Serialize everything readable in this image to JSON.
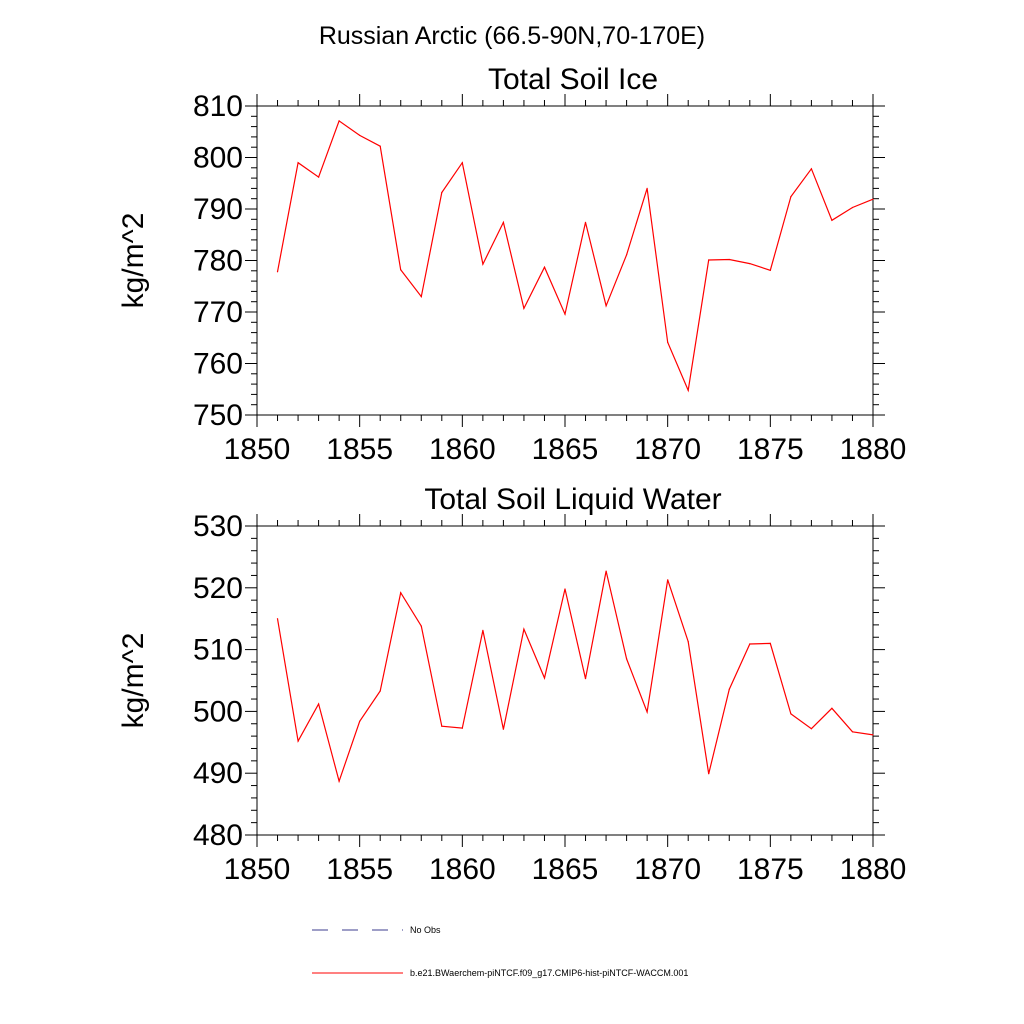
{
  "figure": {
    "suptitle": "Russian Arctic (66.5-90N,70-170E)"
  },
  "chart_data": [
    {
      "type": "line",
      "title": "Total Soil Ice",
      "xlabel": "",
      "ylabel": "kg/m^2",
      "xlim": [
        1850,
        1880
      ],
      "ylim": [
        750,
        810
      ],
      "xticks": [
        1850,
        1855,
        1860,
        1865,
        1870,
        1875,
        1880
      ],
      "yticks": [
        750,
        760,
        770,
        780,
        790,
        800,
        810
      ],
      "grid": false,
      "series": [
        {
          "name": "b.e21.BWaerchem-piNTCF.f09_g17.CMIP6-hist-piNTCF-WACCM.001",
          "color": "#ff0000",
          "x": [
            1851,
            1852,
            1853,
            1854,
            1855,
            1856,
            1857,
            1858,
            1859,
            1860,
            1861,
            1862,
            1863,
            1864,
            1865,
            1866,
            1867,
            1868,
            1869,
            1870,
            1871,
            1872,
            1873,
            1874,
            1875,
            1876,
            1877,
            1878,
            1879,
            1880
          ],
          "y": [
            777.8,
            799.0,
            796.2,
            807.1,
            804.3,
            802.2,
            778.2,
            773.0,
            793.2,
            799.0,
            779.3,
            787.4,
            770.7,
            778.7,
            769.6,
            787.4,
            771.2,
            781.1,
            794.0,
            764.1,
            754.8,
            780.1,
            780.2,
            779.4,
            778.1,
            792.4,
            797.8,
            787.8,
            790.3,
            791.9
          ]
        }
      ]
    },
    {
      "type": "line",
      "title": "Total Soil Liquid Water",
      "xlabel": "",
      "ylabel": "kg/m^2",
      "xlim": [
        1850,
        1880
      ],
      "ylim": [
        480,
        530
      ],
      "xticks": [
        1850,
        1855,
        1860,
        1865,
        1870,
        1875,
        1880
      ],
      "yticks": [
        480,
        490,
        500,
        510,
        520,
        530
      ],
      "grid": false,
      "series": [
        {
          "name": "b.e21.BWaerchem-piNTCF.f09_g17.CMIP6-hist-piNTCF-WACCM.001",
          "color": "#ff0000",
          "x": [
            1851,
            1852,
            1853,
            1854,
            1855,
            1856,
            1857,
            1858,
            1859,
            1860,
            1861,
            1862,
            1863,
            1864,
            1865,
            1866,
            1867,
            1868,
            1869,
            1870,
            1871,
            1872,
            1873,
            1874,
            1875,
            1876,
            1877,
            1878,
            1879,
            1880
          ],
          "y": [
            515.0,
            495.2,
            501.2,
            488.7,
            498.4,
            503.3,
            519.2,
            513.8,
            497.6,
            497.3,
            513.1,
            497.1,
            513.3,
            505.4,
            519.8,
            505.3,
            522.7,
            508.5,
            499.9,
            521.3,
            511.3,
            489.9,
            503.6,
            510.9,
            511.0,
            499.6,
            497.2,
            500.5,
            496.7,
            496.2
          ]
        }
      ]
    }
  ],
  "legend": {
    "items": [
      {
        "label": "No Obs",
        "style": "dashed",
        "color": "#3d3d8f"
      },
      {
        "label": "b.e21.BWaerchem-piNTCF.f09_g17.CMIP6-hist-piNTCF-WACCM.001",
        "style": "solid",
        "color": "#ff0000"
      }
    ]
  }
}
